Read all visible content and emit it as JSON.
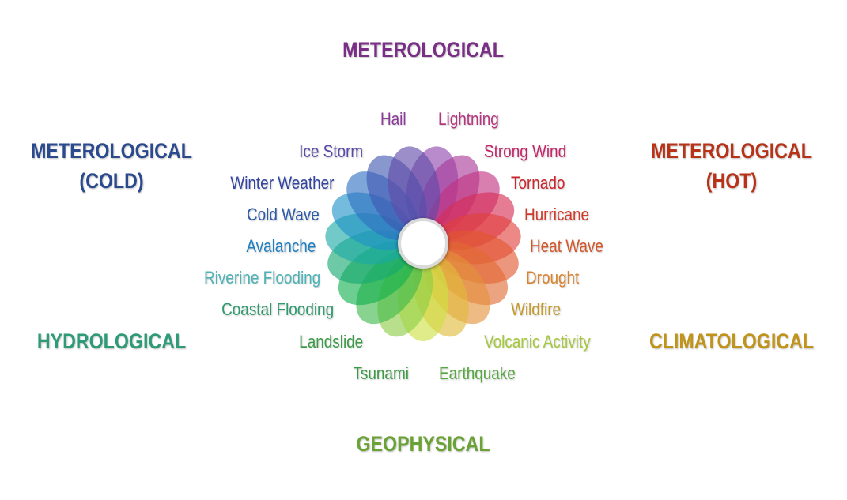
{
  "categories": {
    "top": {
      "text": "METEROLOGICAL",
      "color": "#7a2f86"
    },
    "cold": {
      "line1": "METEROLOGICAL",
      "line2": "(COLD)",
      "color": "#2b4a8e"
    },
    "hot": {
      "line1": "METEROLOGICAL",
      "line2": "(HOT)",
      "color": "#b83218"
    },
    "hydrological": {
      "text": "HYDROLOGICAL",
      "color": "#2f9a78"
    },
    "climatological": {
      "text": "CLIMATOLOGICAL",
      "color": "#c0931a"
    },
    "geophysical": {
      "text": "GEOPHYSICAL",
      "color": "#6aa235"
    }
  },
  "hazards": [
    {
      "label": "Hail",
      "color": "#8b3a9a"
    },
    {
      "label": "Lightning",
      "color": "#b5357f"
    },
    {
      "label": "Strong Wind",
      "color": "#c52668"
    },
    {
      "label": "Tornado",
      "color": "#c9262e"
    },
    {
      "label": "Hurricane",
      "color": "#d1392a"
    },
    {
      "label": "Heat Wave",
      "color": "#d2562a"
    },
    {
      "label": "Drought",
      "color": "#d9832f"
    },
    {
      "label": "Wildfire",
      "color": "#c49a2a"
    },
    {
      "label": "Volcanic Activity",
      "color": "#a5c83c"
    },
    {
      "label": "Earthquake",
      "color": "#55a83f"
    },
    {
      "label": "Tsunami",
      "color": "#3a9a45"
    },
    {
      "label": "Landslide",
      "color": "#3c9a49"
    },
    {
      "label": "Coastal Flooding",
      "color": "#2e9a6e"
    },
    {
      "label": "Riverine Flooding",
      "color": "#4fb3b6"
    },
    {
      "label": "Avalanche",
      "color": "#1f7fc0"
    },
    {
      "label": "Cold Wave",
      "color": "#2b5aa8"
    },
    {
      "label": "Winter Weather",
      "color": "#3345a0"
    },
    {
      "label": "Ice Storm",
      "color": "#5a4aa8"
    }
  ],
  "petals": [
    "#8e44ad",
    "#a8399a",
    "#c2307f",
    "#d72b52",
    "#e0403b",
    "#e2552f",
    "#e06a32",
    "#e4923a",
    "#e0b93a",
    "#cde040",
    "#8ccd45",
    "#3fb84a",
    "#12b04e",
    "#15a870",
    "#1aa9a6",
    "#1f92c8",
    "#2f6fc2",
    "#3f57b0",
    "#5f4aa8"
  ]
}
